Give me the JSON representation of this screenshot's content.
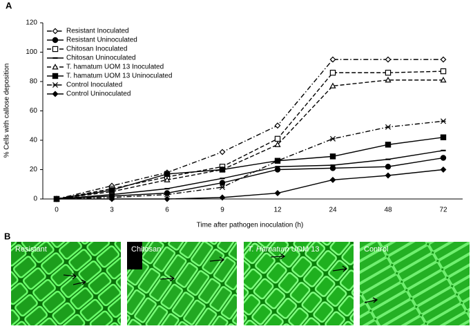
{
  "panels": [
    "A",
    "B"
  ],
  "chart_data": {
    "type": "line",
    "ylabel": "% Cells with callose deposition",
    "xlabel": "Time after pathogen inoculation (h)",
    "categories": [
      "0",
      "3",
      "6",
      "9",
      "12",
      "24",
      "48",
      "72"
    ],
    "ylim": [
      0,
      120
    ],
    "yticks": [
      0,
      20,
      40,
      60,
      80,
      100,
      120
    ],
    "grid": false,
    "legend": "upper-left",
    "series": [
      {
        "name": "Resistant Inoculated",
        "color": "#000000",
        "line_style": "dash-dot",
        "marker": "diamond-open",
        "values": [
          0,
          9,
          18,
          32,
          50,
          95,
          95,
          95
        ]
      },
      {
        "name": "Resistant Uninoculated",
        "color": "#000000",
        "line_style": "solid",
        "marker": "circle",
        "values": [
          0,
          2,
          4,
          11,
          20,
          21,
          22,
          28
        ]
      },
      {
        "name": "Chitosan Inoculated",
        "color": "#000000",
        "line_style": "dashed",
        "marker": "square-open",
        "values": [
          0,
          7,
          15,
          22,
          41,
          86,
          86,
          87
        ]
      },
      {
        "name": "Chitosan Uninoculated",
        "color": "#000000",
        "line_style": "solid",
        "marker": "dash",
        "values": [
          0,
          3,
          7,
          14,
          22,
          23,
          27,
          33
        ]
      },
      {
        "name": "T. hamatum UOM 13 Inoculated",
        "color": "#000000",
        "line_style": "dashed",
        "marker": "triangle-open",
        "values": [
          0,
          5,
          13,
          20,
          37,
          77,
          81,
          81
        ]
      },
      {
        "name": "T. hamatum UOM 13 Uninoculated",
        "color": "#000000",
        "line_style": "solid",
        "marker": "square",
        "values": [
          0,
          6,
          17,
          20,
          26,
          29,
          37,
          42
        ]
      },
      {
        "name": "Control Inoculated",
        "color": "#000000",
        "line_style": "dash-dot",
        "marker": "star",
        "values": [
          0,
          1,
          3,
          8,
          26,
          41,
          49,
          53
        ]
      },
      {
        "name": "Control Uninoculated",
        "color": "#000000",
        "line_style": "solid",
        "marker": "diamond",
        "values": [
          0,
          0,
          0,
          1,
          4,
          13,
          16,
          20
        ]
      }
    ]
  },
  "images": [
    {
      "label": "Resistant"
    },
    {
      "label": "Chitosan"
    },
    {
      "label_italic": "T. Hamatum",
      "label": "UOM 13"
    },
    {
      "label": "Control"
    }
  ]
}
